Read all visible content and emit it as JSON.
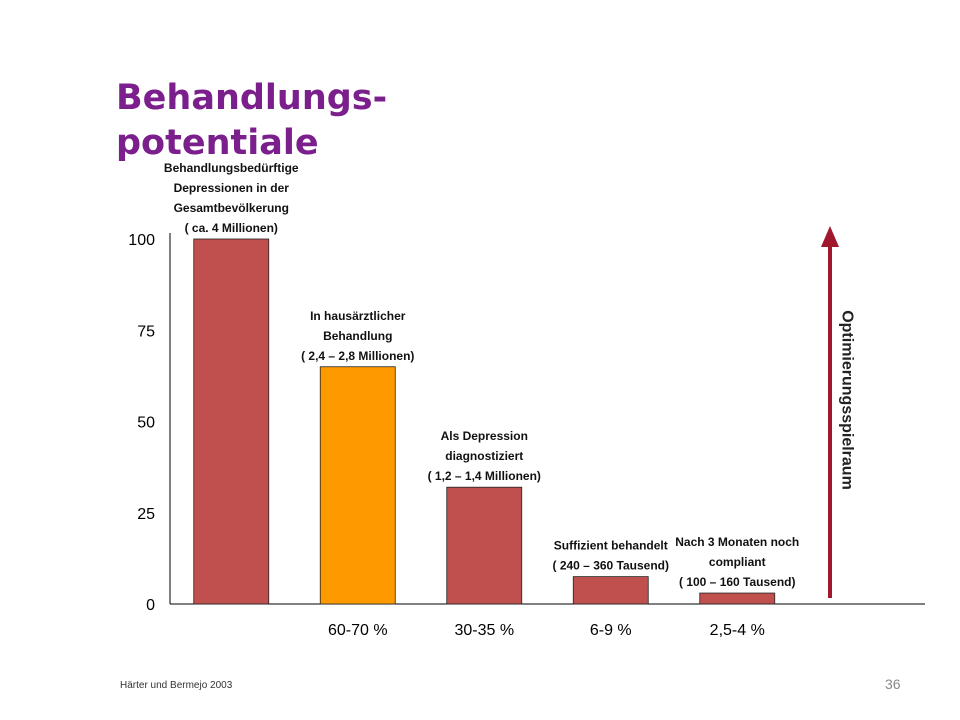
{
  "title_lines": [
    "Behandlungs-",
    "potentiale"
  ],
  "citation": "Härter und Bermejo 2003",
  "page_number": "36",
  "arrow_label": "Optimierungsspielraum",
  "colors": {
    "bar": "#c0504d",
    "highlight": "#ff9900",
    "arrow": "#a0172e",
    "title": "#7b1f8c"
  },
  "chart_data": {
    "type": "bar",
    "title": "",
    "xlabel": "",
    "ylabel": "",
    "ylim": [
      0,
      100
    ],
    "yticks": [
      0,
      25,
      50,
      75,
      100
    ],
    "categories": [
      "",
      "60-70 %",
      "30-35 %",
      "6-9 %",
      "2,5-4 %"
    ],
    "values": [
      100,
      65,
      32,
      7.5,
      3
    ],
    "highlight_index": 1,
    "annotations": [
      [
        "Behandlungsbedürftige",
        "Depressionen in der",
        "Gesamtbevölkerung",
        "( ca. 4 Millionen)"
      ],
      [
        "In hausärztlicher",
        "Behandlung",
        "( 2,4 – 2,8 Millionen)"
      ],
      [
        "Als Depression",
        "diagnostiziert",
        "( 1,2 – 1,4 Millionen)"
      ],
      [
        "Suffizient behandelt",
        "( 240 – 360 Tausend)"
      ],
      [
        "Nach 3 Monaten noch",
        "compliant",
        "( 100 – 160 Tausend)"
      ]
    ]
  }
}
